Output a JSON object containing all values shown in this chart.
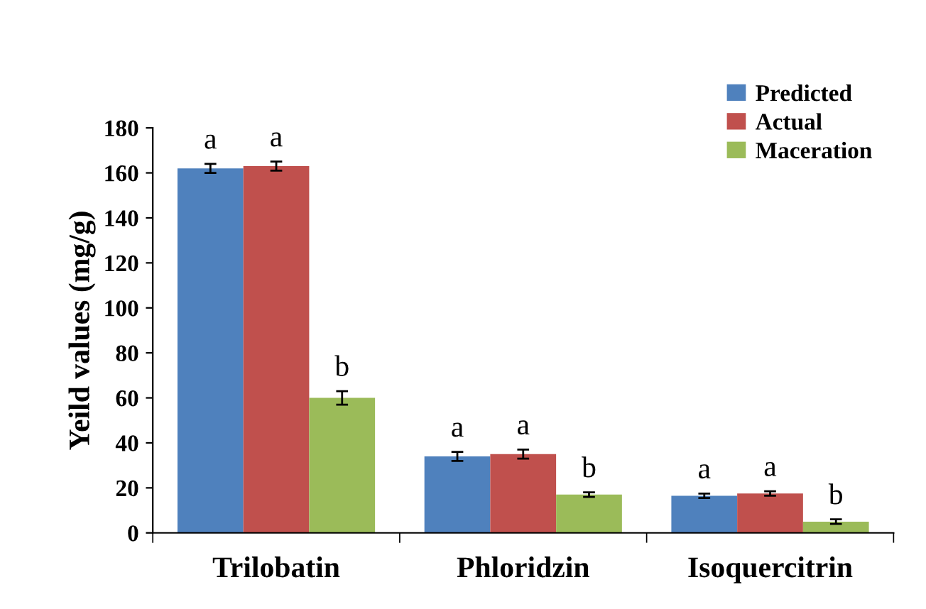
{
  "chart_data": {
    "type": "bar",
    "ylabel": "Yeild values (mg/g)",
    "categories": [
      "Trilobatin",
      "Phloridzin",
      "Isoquercitrin"
    ],
    "series": [
      {
        "name": "Predicted",
        "color": "#4f81bd",
        "values": [
          162,
          34,
          16.5
        ],
        "errors": [
          2,
          2,
          1
        ],
        "value_labels": [
          "a",
          "a",
          "a"
        ]
      },
      {
        "name": "Actual",
        "color": "#c0504d",
        "values": [
          163,
          35,
          17.5
        ],
        "errors": [
          2,
          2,
          1
        ],
        "value_labels": [
          "a",
          "a",
          "a"
        ]
      },
      {
        "name": "Maceration",
        "color": "#9bbb59",
        "values": [
          60,
          17,
          5
        ],
        "errors": [
          3,
          1,
          1
        ],
        "value_labels": [
          "b",
          "b",
          "b"
        ]
      }
    ],
    "ylim": [
      0,
      180
    ],
    "yticks": [
      0,
      20,
      40,
      60,
      80,
      100,
      120,
      140,
      160,
      180
    ],
    "grid": false,
    "legend": "top right"
  }
}
